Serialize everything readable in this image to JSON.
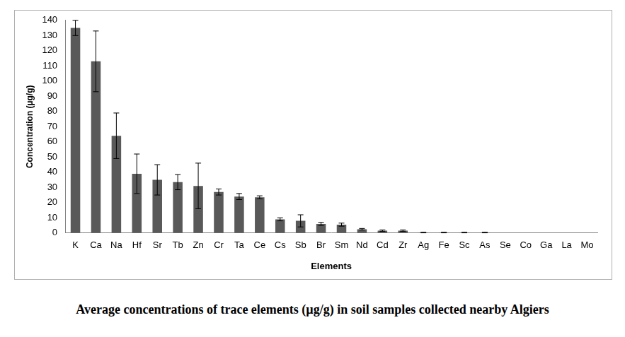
{
  "chart_data": {
    "type": "bar",
    "title": "Average concentrations of trace elements (µg/g) in soil samples collected nearby Algiers",
    "x_label": "Elements",
    "y_label": "Concentration (µg/g)",
    "categories": [
      "K",
      "Ca",
      "Na",
      "Hf",
      "Sr",
      "Tb",
      "Zn",
      "Cr",
      "Ta",
      "Ce",
      "Cs",
      "Sb",
      "Br",
      "Sm",
      "Nd",
      "Cd",
      "Zr",
      "Ag",
      "Fe",
      "Sc",
      "As",
      "Se",
      "Co",
      "Ga",
      "La",
      "Mo"
    ],
    "values": [
      135,
      113,
      64,
      39,
      35,
      33.5,
      31,
      27,
      24,
      23.5,
      9,
      8,
      6,
      5.5,
      2.5,
      1.5,
      1.5,
      0.3,
      0.3,
      0.3,
      0.3,
      0.05,
      0.05,
      0.02,
      0.02,
      0.01
    ],
    "error": [
      5,
      20,
      15,
      13,
      10,
      5,
      15,
      2,
      2,
      1,
      1,
      4,
      1,
      1,
      0.5,
      0.5,
      0.5,
      0.2,
      0.2,
      0.2,
      0.2,
      0,
      0,
      0,
      0,
      0
    ],
    "color": "#595959",
    "ylim": [
      0,
      140
    ],
    "yticks": [
      0,
      10,
      20,
      30,
      40,
      50,
      60,
      70,
      80,
      90,
      100,
      110,
      120,
      130,
      140
    ],
    "grid": false
  }
}
